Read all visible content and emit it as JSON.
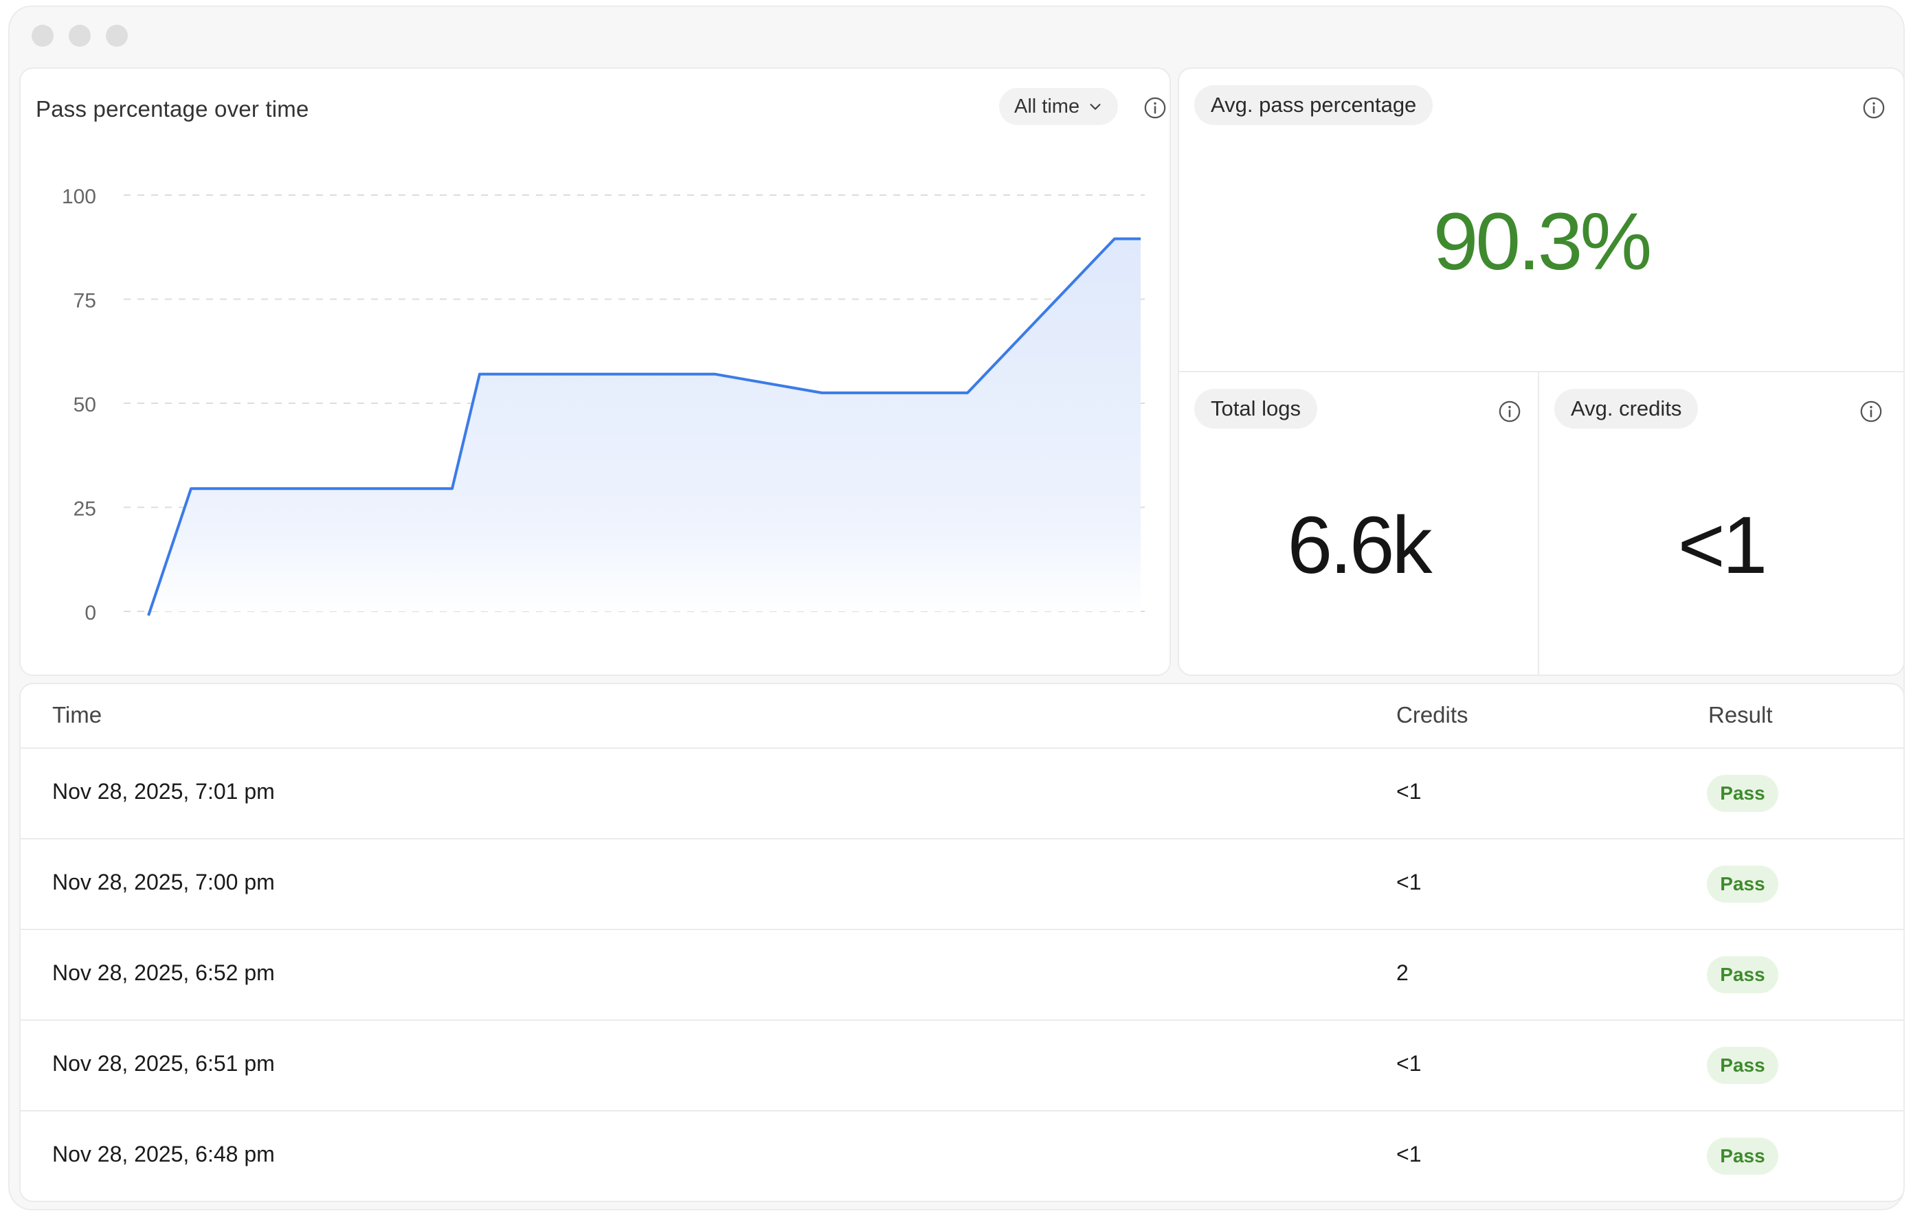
{
  "chart_panel": {
    "title": "Pass percentage over time",
    "range_label": "All time"
  },
  "chart_data": {
    "type": "area",
    "title": "Pass percentage over time",
    "xlabel": "",
    "ylabel": "",
    "ylim": [
      0,
      100
    ],
    "yticks": [
      0,
      25,
      50,
      75,
      100
    ],
    "grid": true,
    "x": [
      0,
      1,
      2,
      3,
      4,
      5,
      6,
      7,
      8,
      9,
      10,
      11
    ],
    "values": [
      -1,
      29.5,
      29.5,
      29.5,
      57,
      57,
      57,
      52.5,
      52.5,
      89.5,
      89.5,
      89.5
    ],
    "colors": {
      "line": "#3b7be8",
      "fill": "#e3ecfd"
    }
  },
  "stats": {
    "avg_pass": {
      "label": "Avg. pass percentage",
      "value": "90.3%",
      "color": "#3f8a2f"
    },
    "total_logs": {
      "label": "Total logs",
      "value": "6.6k"
    },
    "avg_credits": {
      "label": "Avg. credits",
      "value": "<1"
    }
  },
  "table": {
    "columns": [
      "Time",
      "Credits",
      "Result"
    ],
    "rows": [
      {
        "time": "Nov 28, 2025, 7:01 pm",
        "credits": "<1",
        "result": "Pass"
      },
      {
        "time": "Nov 28, 2025, 7:00 pm",
        "credits": "<1",
        "result": "Pass"
      },
      {
        "time": "Nov 28, 2025, 6:52 pm",
        "credits": "2",
        "result": "Pass"
      },
      {
        "time": "Nov 28, 2025, 6:51 pm",
        "credits": "<1",
        "result": "Pass"
      },
      {
        "time": "Nov 28, 2025, 6:48 pm",
        "credits": "<1",
        "result": "Pass"
      }
    ]
  },
  "icons": {
    "info": "info-icon",
    "dropdown": "chevron-down-icon"
  }
}
